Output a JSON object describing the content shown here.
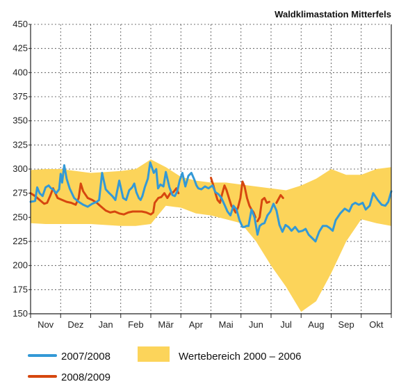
{
  "chart_data": {
    "type": "line",
    "title": "Waldklimastation Mitterfels",
    "xlabel": "",
    "ylabel": "",
    "ylim": [
      150,
      450
    ],
    "yticks": [
      150,
      175,
      200,
      225,
      250,
      275,
      300,
      325,
      350,
      375,
      400,
      425,
      450
    ],
    "x_unit": "month index from start of November",
    "xlim": [
      0,
      12
    ],
    "months": [
      "Nov",
      "Dez",
      "Jan",
      "Feb",
      "Mär",
      "Apr",
      "Mai",
      "Jun",
      "Jul",
      "Aug",
      "Sep",
      "Okt"
    ],
    "grid": true,
    "legend_position": "bottom",
    "band": {
      "name": "Wertebereich 2000 – 2006",
      "color": "#fcd45a",
      "x": [
        0,
        0.5,
        1,
        1.5,
        2,
        2.5,
        3,
        3.5,
        4,
        4.5,
        5,
        5.5,
        6,
        6.5,
        7,
        7.5,
        8,
        8.5,
        9,
        9.5,
        10,
        10.5,
        11,
        11.5,
        12
      ],
      "upper": [
        299,
        300,
        300,
        298,
        296,
        297,
        298,
        300,
        310,
        302,
        292,
        288,
        286,
        286,
        284,
        282,
        280,
        278,
        283,
        290,
        300,
        294,
        294,
        300,
        302
      ],
      "lower": [
        244,
        243,
        243,
        243,
        243,
        242,
        241,
        241,
        243,
        262,
        260,
        254,
        252,
        248,
        244,
        225,
        200,
        178,
        152,
        163,
        192,
        225,
        248,
        244,
        241
      ]
    },
    "series": [
      {
        "name": "2007/2008",
        "color": "#3399d6",
        "x": [
          0,
          0.15,
          0.22,
          0.3,
          0.4,
          0.5,
          0.6,
          0.68,
          0.75,
          0.85,
          0.95,
          1.0,
          1.05,
          1.12,
          1.2,
          1.3,
          1.45,
          1.6,
          1.75,
          1.9,
          2.05,
          2.2,
          2.28,
          2.38,
          2.5,
          2.62,
          2.72,
          2.82,
          2.95,
          3.08,
          3.18,
          3.28,
          3.38,
          3.45,
          3.52,
          3.6,
          3.66,
          3.72,
          3.8,
          3.9,
          3.98,
          4.1,
          4.18,
          4.24,
          4.32,
          4.42,
          4.5,
          4.62,
          4.72,
          4.8,
          4.88,
          4.96,
          5.05,
          5.15,
          5.25,
          5.35,
          5.45,
          5.52,
          5.58,
          5.68,
          5.8,
          5.92,
          6.05,
          6.15,
          6.25,
          6.35,
          6.45,
          6.55,
          6.65,
          6.75,
          6.85,
          6.95,
          7.05,
          7.12,
          7.18,
          7.25,
          7.35,
          7.45,
          7.55,
          7.62,
          7.7,
          7.78,
          7.88,
          7.98,
          8.08,
          8.18,
          8.28,
          8.38,
          8.48,
          8.58,
          8.68,
          8.8,
          8.92,
          9.05,
          9.15,
          9.25,
          9.35,
          9.48,
          9.6,
          9.72,
          9.85,
          9.95,
          10.05,
          10.15,
          10.3,
          10.45,
          10.6,
          10.7,
          10.8,
          10.92,
          11.05,
          11.15,
          11.28,
          11.4,
          11.55,
          11.68,
          11.8,
          11.9,
          12.0
        ],
        "y": [
          266,
          267,
          281,
          275,
          272,
          281,
          283,
          280,
          279,
          275,
          279,
          295,
          286,
          304,
          290,
          280,
          270,
          266,
          263,
          261,
          264,
          266,
          268,
          296,
          279,
          275,
          272,
          268,
          288,
          270,
          268,
          278,
          281,
          285,
          276,
          270,
          268,
          272,
          281,
          290,
          307,
          296,
          300,
          280,
          284,
          282,
          297,
          281,
          273,
          272,
          277,
          288,
          296,
          282,
          293,
          296,
          289,
          283,
          280,
          279,
          282,
          280,
          283,
          276,
          274,
          270,
          263,
          256,
          252,
          262,
          258,
          247,
          240,
          240,
          241,
          241,
          258,
          250,
          232,
          241,
          243,
          244,
          252,
          256,
          264,
          257,
          242,
          235,
          242,
          240,
          236,
          240,
          235,
          236,
          238,
          232,
          229,
          225,
          235,
          241,
          241,
          239,
          236,
          247,
          254,
          259,
          256,
          263,
          265,
          263,
          265,
          258,
          262,
          275,
          268,
          263,
          262,
          266,
          277
        ]
      },
      {
        "name": "2008/2009",
        "color": "#d6470f",
        "x": [
          0,
          0.15,
          0.3,
          0.45,
          0.55,
          0.65,
          0.75,
          0.9,
          1.05,
          1.2,
          1.35,
          1.5,
          1.6,
          1.67,
          1.75,
          1.9,
          2.05,
          2.2,
          2.35,
          2.5,
          2.65,
          2.8,
          2.95,
          3.1,
          3.25,
          3.4,
          3.55,
          3.7,
          3.85,
          4.0,
          4.08,
          4.13,
          4.25,
          4.35,
          4.45,
          4.55,
          4.65,
          4.75,
          4.85,
          4.92
        ],
        "y": [
          275,
          272,
          268,
          264,
          265,
          272,
          280,
          270,
          268,
          266,
          265,
          263,
          270,
          285,
          277,
          270,
          268,
          265,
          261,
          257,
          255,
          256,
          254,
          253,
          255,
          256,
          256,
          256,
          255,
          253,
          255,
          265,
          270,
          271,
          275,
          270,
          275,
          276,
          280,
          275
        ],
        "segments_extra": [
          {
            "x": [
              6.0,
              6.08,
              6.15,
              6.22,
              6.3,
              6.38,
              6.45,
              6.52,
              6.6,
              6.68,
              6.75,
              6.82,
              6.9,
              6.98,
              7.05,
              7.12,
              7.2,
              7.28,
              7.35,
              7.42,
              7.48
            ],
            "y": [
              291,
              283,
              275,
              268,
              265,
              275,
              283,
              278,
              270,
              262,
              259,
              255,
              260,
              270,
              287,
              282,
              270,
              262,
              258,
              255,
              250
            ]
          },
          {
            "x": [
              7.55,
              7.62,
              7.7,
              7.78,
              7.86,
              7.94
            ],
            "y": [
              246,
              250,
              268,
              270,
              265,
              266
            ]
          },
          {
            "x": [
              8.18,
              8.25,
              8.32,
              8.4
            ],
            "y": [
              265,
              269,
              273,
              270
            ]
          }
        ]
      }
    ]
  }
}
